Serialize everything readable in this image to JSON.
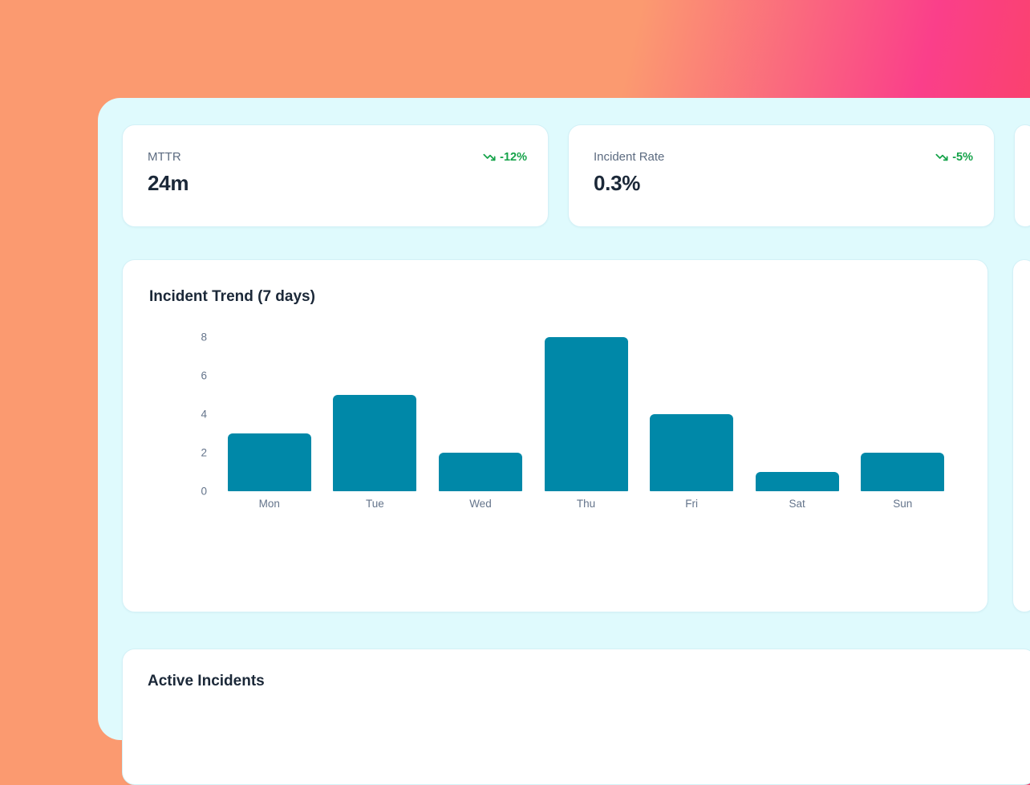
{
  "theme": {
    "gradient_orange": "#FB9A70",
    "gradient_pink": "#FA3F8A",
    "gradient_red": "#FB4457",
    "panel_bg": "#DFFAFD",
    "card_bg": "#FFFFFF",
    "card_border": "#D3F1F7",
    "accent_teal": "#0088A8",
    "text_dark": "#1B2838",
    "text_muted": "#5C6B80",
    "axis_text": "#64748B",
    "trend_green": "#16A34A"
  },
  "kpi_cards": [
    {
      "label": "MTTR",
      "value": "24m",
      "trend": "-12%",
      "trend_direction": "down",
      "icon": "trending-down-icon"
    },
    {
      "label": "Incident Rate",
      "value": "0.3%",
      "trend": "-5%",
      "trend_direction": "down",
      "icon": "trending-down-icon"
    }
  ],
  "chart_data": {
    "type": "bar",
    "title": "Incident Trend (7 days)",
    "categories": [
      "Mon",
      "Tue",
      "Wed",
      "Thu",
      "Fri",
      "Sat",
      "Sun"
    ],
    "values": [
      3,
      5,
      2,
      8,
      4,
      1,
      2
    ],
    "ylim": [
      0,
      8
    ],
    "yticks": [
      0,
      2,
      4,
      6,
      8
    ],
    "bar_color": "#0088A8",
    "grid": false,
    "legend": false,
    "xlabel": "",
    "ylabel": ""
  },
  "sections": {
    "active_incidents_title": "Active Incidents"
  }
}
